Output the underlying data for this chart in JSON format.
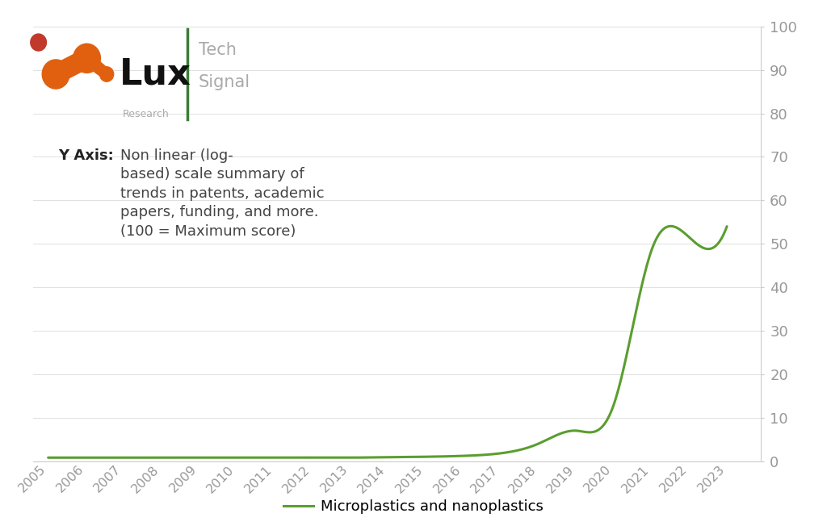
{
  "years": [
    2005,
    2006,
    2007,
    2008,
    2009,
    2010,
    2011,
    2012,
    2013,
    2014,
    2015,
    2016,
    2017,
    2018,
    2019,
    2020,
    2021,
    2022,
    2023
  ],
  "values": [
    0.8,
    0.8,
    0.8,
    0.8,
    0.8,
    0.8,
    0.8,
    0.8,
    0.8,
    0.9,
    1.0,
    1.2,
    1.8,
    4.0,
    7.0,
    13.0,
    48.5,
    51.5,
    54.0
  ],
  "line_color": "#5a9e2f",
  "line_width": 2.2,
  "ylim": [
    0,
    100
  ],
  "yticks": [
    0,
    10,
    20,
    30,
    40,
    50,
    60,
    70,
    80,
    90,
    100
  ],
  "xlabel_years": [
    "2005",
    "2006",
    "2007",
    "2008",
    "2009",
    "2010",
    "2011",
    "2012",
    "2013",
    "2014",
    "2015",
    "2016",
    "2017",
    "2018",
    "2019",
    "2020",
    "2021",
    "2022",
    "2023"
  ],
  "legend_label": "Microplastics and nanoplastics",
  "background_color": "#ffffff",
  "grid_color": "#e0e0e0",
  "spine_color": "#cccccc",
  "tick_label_color": "#999999"
}
